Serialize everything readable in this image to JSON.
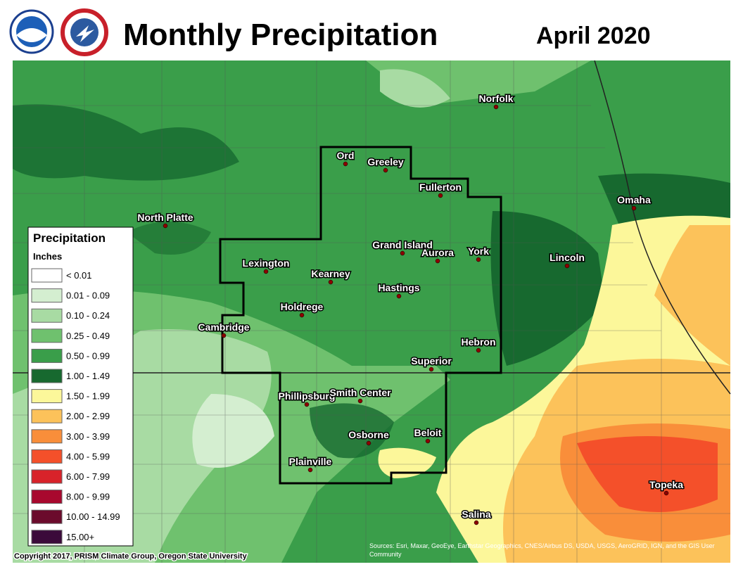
{
  "header": {
    "title": "Monthly Precipitation",
    "date": "April 2020"
  },
  "legend": {
    "title": "Precipitation",
    "units": "Inches",
    "items": [
      {
        "label": "< 0.01",
        "color": "#ffffff"
      },
      {
        "label": "0.01 - 0.09",
        "color": "#d4eed0"
      },
      {
        "label": "0.10 - 0.24",
        "color": "#a8dba3"
      },
      {
        "label": "0.25 - 0.49",
        "color": "#6fc16e"
      },
      {
        "label": "0.50 - 0.99",
        "color": "#3a9e4a"
      },
      {
        "label": "1.00 - 1.49",
        "color": "#17692f"
      },
      {
        "label": "1.50 - 1.99",
        "color": "#fcf79a"
      },
      {
        "label": "2.00 - 2.99",
        "color": "#fcc25a"
      },
      {
        "label": "3.00 - 3.99",
        "color": "#f98e3a"
      },
      {
        "label": "4.00 - 5.99",
        "color": "#f4502a"
      },
      {
        "label": "6.00 - 7.99",
        "color": "#d8232a"
      },
      {
        "label": "8.00 - 9.99",
        "color": "#a8082e"
      },
      {
        "label": "10.00 - 14.99",
        "color": "#6b0b2c"
      },
      {
        "label": "15.00+",
        "color": "#3b0a3a"
      }
    ]
  },
  "cities": [
    "Norfolk",
    "Ord",
    "Greeley",
    "Fullerton",
    "North Platte",
    "Omaha",
    "Grand Island",
    "Aurora",
    "York",
    "Lincoln",
    "Lexington",
    "Kearney",
    "Hastings",
    "Holdrege",
    "Cambridge",
    "Hebron",
    "Superior",
    "Phillipsburg",
    "Smith Center",
    "Osborne",
    "Beloit",
    "Plainville",
    "Topeka",
    "Salina"
  ],
  "footer": {
    "copyright": "Copyright 2017, PRISM Climate Group, Oregon State University",
    "source": "Sources: Esri, Maxar, GeoEye, Earthstar Geographics, CNES/Airbus DS, USDA, USGS, AeroGRID, IGN, and the GIS User Community"
  }
}
